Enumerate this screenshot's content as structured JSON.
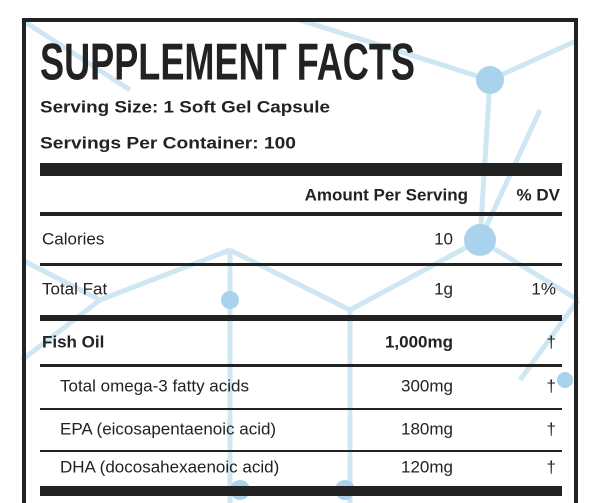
{
  "header": {
    "title": "SUPPLEMENT FACTS",
    "serving_size": "Serving Size: 1 Soft Gel Capsule",
    "servings_per_container": "Servings Per Container: 100"
  },
  "table": {
    "columns": [
      "Amount Per Serving",
      "% DV"
    ],
    "rows": [
      {
        "name": "Calories",
        "amount": "10"
      },
      {
        "name": "Total Fat",
        "amount": "1g",
        "dv": "1%"
      },
      {
        "name": "Fish Oil",
        "amount": "1,000mg",
        "dv": "†"
      },
      {
        "name": "Total omega-3 fatty acids",
        "amount": "300mg",
        "dv": "†"
      },
      {
        "name": "EPA (eicosapentaenoic acid)",
        "amount": "180mg",
        "dv": "†"
      },
      {
        "name": "DHA (docosahexaenoic acid)",
        "amount": "120mg",
        "dv": "†"
      }
    ]
  }
}
